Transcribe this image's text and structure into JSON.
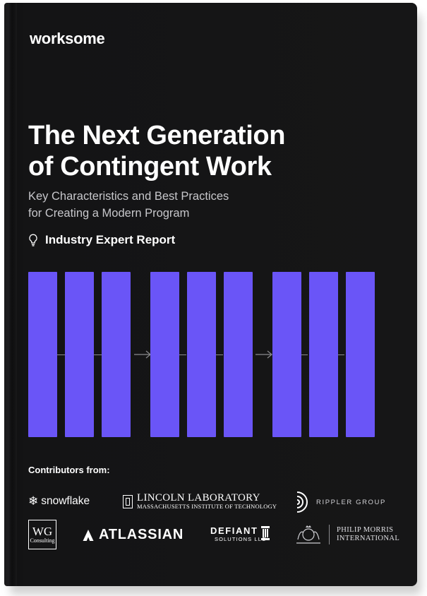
{
  "brand": {
    "name": "worksome"
  },
  "cover": {
    "title_line1": "The Next Generation",
    "title_line2": "of Contingent Work",
    "subtitle_line1": "Key Characteristics and Best Practices",
    "subtitle_line2": "for Creating a Modern Program",
    "badge_label": "Industry Expert Report",
    "badge_icon": "lightbulb-icon",
    "accent_color": "#6a55f7",
    "background_color": "#141415"
  },
  "contributors": {
    "heading": "Contributors from:",
    "snowflake": "snowflake",
    "lincoln_line1": "LINCOLN LABORATORY",
    "lincoln_line2": "MASSACHUSETTS INSTITUTE OF TECHNOLOGY",
    "rippler": "RIPPLER GROUP",
    "wg_big": "WG",
    "wg_small": "Consulting",
    "atlassian": "ATLASSIAN",
    "defiant_line1": "DEFIANT",
    "defiant_line2": "SOLUTIONS LLC",
    "pmi_line1": "PHILIP MORRIS",
    "pmi_line2": "INTERNATIONAL"
  }
}
